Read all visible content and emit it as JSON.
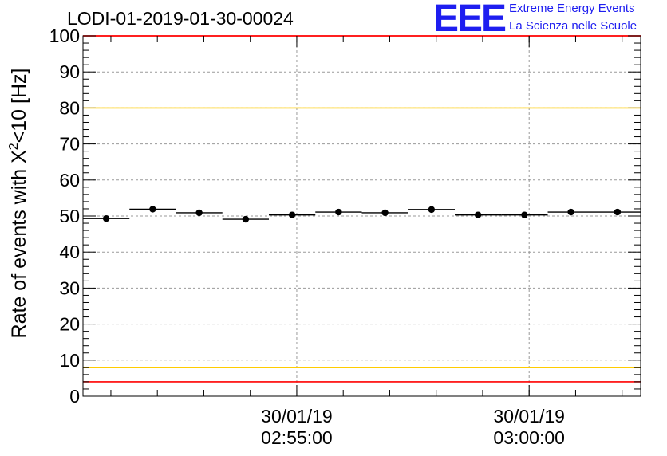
{
  "logo": {
    "mark": "EEE",
    "line1": "Extreme Energy Events",
    "line2": "La Scienza nelle Scuole",
    "color": "#1e1ef0"
  },
  "chart_data": {
    "type": "scatter",
    "title": "LODI-01-2019-01-30-00024",
    "ylabel": "Rate of events with X",
    "ylabel_sup": "2",
    "ylabel_tail": "<10 [Hz]",
    "xlabel": "",
    "ylim": [
      0,
      100
    ],
    "xlim": [
      0,
      12
    ],
    "yticks": [
      0,
      10,
      20,
      30,
      40,
      50,
      60,
      70,
      80,
      90,
      100
    ],
    "xticks": [
      {
        "x": 4.6,
        "date": "30/01/19",
        "time": "02:55:00"
      },
      {
        "x": 9.6,
        "date": "30/01/19",
        "time": "03:00:00"
      }
    ],
    "grid": true,
    "series": [
      {
        "name": "rate",
        "x": [
          0.5,
          1.5,
          2.5,
          3.5,
          4.5,
          5.5,
          6.5,
          7.5,
          8.5,
          9.5,
          10.5,
          11.5
        ],
        "x_halfwidth": 0.5,
        "values": [
          49.3,
          51.9,
          50.9,
          49.1,
          50.3,
          51.1,
          50.9,
          51.8,
          50.3,
          50.3,
          51.1,
          51.1
        ]
      }
    ],
    "reference_lines": [
      {
        "y": 100,
        "color": "#ff0000"
      },
      {
        "y": 80,
        "color": "#ffcc00"
      },
      {
        "y": 8,
        "color": "#ffcc00"
      },
      {
        "y": 4,
        "color": "#ff0000"
      }
    ]
  }
}
